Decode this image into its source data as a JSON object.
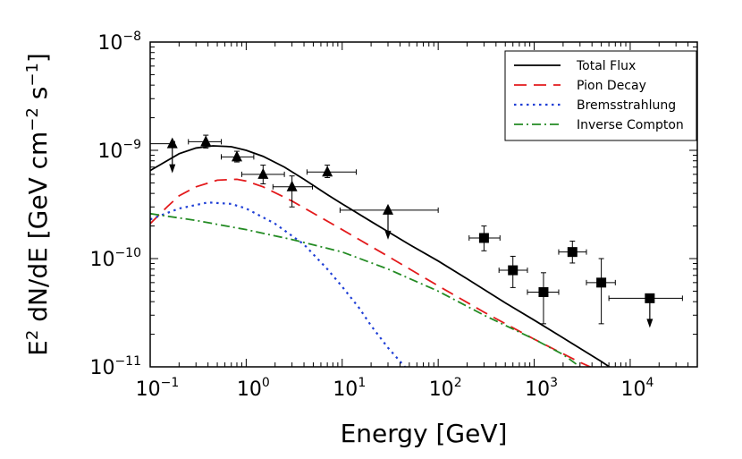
{
  "chart_data": {
    "type": "line",
    "title": "",
    "xlabel": "Energy [GeV]",
    "ylabel_parts": [
      "E",
      "2",
      " dN/dE [GeV cm",
      "−2",
      " s",
      "−1",
      "]"
    ],
    "x_scale": "log",
    "y_scale": "log",
    "xlim": [
      0.1,
      50000
    ],
    "ylim": [
      1e-11,
      1e-08
    ],
    "x_ticks": [
      {
        "value": 0.1,
        "base": "10",
        "exp": "−1"
      },
      {
        "value": 1,
        "base": "10",
        "exp": "0"
      },
      {
        "value": 10,
        "base": "10",
        "exp": "1"
      },
      {
        "value": 100,
        "base": "10",
        "exp": "2"
      },
      {
        "value": 1000,
        "base": "10",
        "exp": "3"
      },
      {
        "value": 10000,
        "base": "10",
        "exp": "4"
      }
    ],
    "y_ticks": [
      {
        "value": 1e-11,
        "base": "10",
        "exp": "−11"
      },
      {
        "value": 1e-10,
        "base": "10",
        "exp": "−10"
      },
      {
        "value": 1e-09,
        "base": "10",
        "exp": "−9"
      },
      {
        "value": 1e-08,
        "base": "10",
        "exp": "−8"
      }
    ],
    "legend_position": "top-right",
    "series": [
      {
        "name": "Total Flux",
        "color": "#000000",
        "dash": "solid",
        "x": [
          0.1,
          0.2,
          0.3,
          0.45,
          0.7,
          1,
          1.5,
          2.5,
          4,
          7,
          10,
          20,
          50,
          100,
          200,
          500,
          1000,
          2000,
          5000,
          8000
        ],
        "y": [
          6.5e-10,
          9.3e-10,
          1.05e-09,
          1.1e-09,
          1.08e-09,
          1e-09,
          8.8e-10,
          7e-10,
          5.4e-10,
          3.9e-10,
          3.2e-10,
          2.2e-10,
          1.35e-10,
          9.5e-11,
          6.5e-11,
          3.9e-11,
          2.7e-11,
          1.85e-11,
          1.12e-11,
          8.5e-12
        ]
      },
      {
        "name": "Pion Decay",
        "color": "#e31a1c",
        "dash": "long",
        "x": [
          0.1,
          0.15,
          0.2,
          0.3,
          0.5,
          0.8,
          1,
          1.5,
          3,
          10,
          30,
          100,
          300,
          1000,
          3000,
          5000
        ],
        "y": [
          2.1e-10,
          3e-10,
          3.8e-10,
          4.6e-10,
          5.3e-10,
          5.4e-10,
          5.2e-10,
          4.6e-10,
          3.4e-10,
          1.85e-10,
          1.05e-10,
          5.6e-11,
          3.2e-11,
          1.8e-11,
          1.1e-11,
          9e-12
        ]
      },
      {
        "name": "Bremsstrahlung",
        "color": "#1f3fd6",
        "dash": "dotted",
        "x": [
          0.1,
          0.2,
          0.4,
          0.7,
          1,
          2,
          4,
          7,
          10,
          15,
          20,
          30,
          45
        ],
        "y": [
          2.3e-10,
          2.9e-10,
          3.3e-10,
          3.2e-10,
          2.9e-10,
          2.1e-10,
          1.35e-10,
          8e-11,
          5.5e-11,
          3.5e-11,
          2.4e-11,
          1.5e-11,
          1e-11
        ]
      },
      {
        "name": "Inverse Compton",
        "color": "#238b23",
        "dash": "dashdot",
        "x": [
          0.1,
          0.3,
          1,
          3,
          10,
          30,
          100,
          300,
          1000,
          2000,
          3000
        ],
        "y": [
          2.6e-10,
          2.25e-10,
          1.85e-10,
          1.5e-10,
          1.15e-10,
          8e-11,
          5e-11,
          3e-11,
          1.8e-11,
          1.3e-11,
          1e-11
        ]
      }
    ],
    "points_fermi": {
      "marker": "triangle",
      "points": [
        {
          "x": 0.17,
          "y": 1.15e-09,
          "xerr": [
            0.1,
            0.18
          ],
          "yerr": [
            1.1e-09,
            1.2e-09
          ],
          "upper_limit": true
        },
        {
          "x": 0.38,
          "y": 1.2e-09,
          "xerr": [
            0.25,
            0.55
          ],
          "yerr": [
            1.05e-09,
            1.38e-09
          ],
          "upper_limit": false
        },
        {
          "x": 0.8,
          "y": 8.7e-10,
          "xerr": [
            0.55,
            1.2
          ],
          "yerr": [
            7.8e-10,
            9.8e-10
          ],
          "upper_limit": false
        },
        {
          "x": 1.5,
          "y": 6e-10,
          "xerr": [
            0.9,
            2.5
          ],
          "yerr": [
            4.9e-10,
            7.3e-10
          ],
          "upper_limit": false
        },
        {
          "x": 3.0,
          "y": 4.6e-10,
          "xerr": [
            1.9,
            4.9
          ],
          "yerr": [
            3e-10,
            5.8e-10
          ],
          "upper_limit": false
        },
        {
          "x": 7.0,
          "y": 6.3e-10,
          "xerr": [
            4.3,
            14
          ],
          "yerr": [
            5.6e-10,
            7.3e-10
          ],
          "upper_limit": false
        },
        {
          "x": 30,
          "y": 2.8e-10,
          "xerr": [
            9.5,
            100
          ],
          "yerr": [
            2.8e-10,
            2.8e-10
          ],
          "upper_limit": true
        }
      ]
    },
    "points_tev": {
      "marker": "square",
      "points": [
        {
          "x": 300,
          "y": 1.55e-10,
          "xerr": [
            210,
            440
          ],
          "yerr": [
            1.18e-10,
            2e-10
          ],
          "upper_limit": false
        },
        {
          "x": 600,
          "y": 7.8e-11,
          "xerr": [
            430,
            850
          ],
          "yerr": [
            5.4e-11,
            1.05e-10
          ],
          "upper_limit": false
        },
        {
          "x": 1250,
          "y": 4.9e-11,
          "xerr": [
            850,
            1800
          ],
          "yerr": [
            2.5e-11,
            7.4e-11
          ],
          "upper_limit": false
        },
        {
          "x": 2500,
          "y": 1.15e-10,
          "xerr": [
            1800,
            3500
          ],
          "yerr": [
            9.1e-11,
            1.45e-10
          ],
          "upper_limit": false
        },
        {
          "x": 5000,
          "y": 6e-11,
          "xerr": [
            3500,
            7000
          ],
          "yerr": [
            2.5e-11,
            1e-10
          ],
          "upper_limit": false
        },
        {
          "x": 16000,
          "y": 4.3e-11,
          "xerr": [
            6000,
            35000
          ],
          "yerr": [
            4.3e-11,
            4.3e-11
          ],
          "upper_limit": true
        }
      ]
    }
  }
}
